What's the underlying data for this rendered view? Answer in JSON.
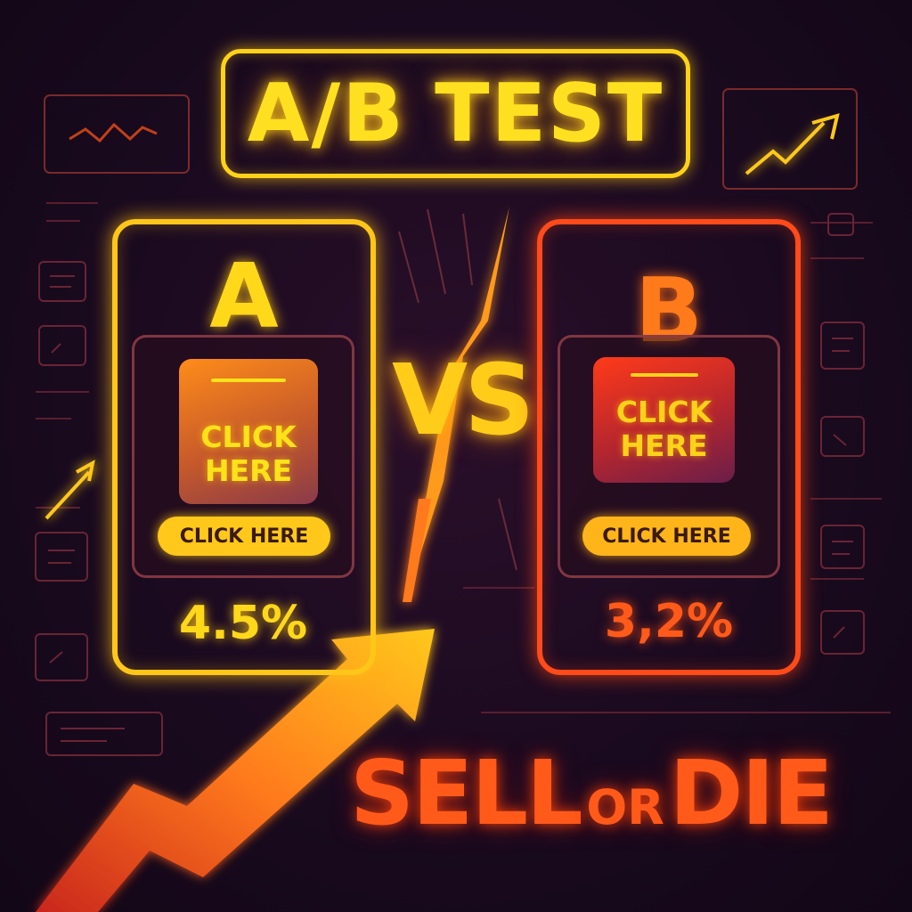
{
  "title": "A/B TEST",
  "vs_label": "VS",
  "variants": [
    {
      "letter": "A",
      "image_cta": [
        "CLICK",
        "HERE"
      ],
      "button": "CLICK HERE",
      "rate": "4.5%"
    },
    {
      "letter": "B",
      "image_cta": [
        "CLICK",
        "HERE"
      ],
      "button": "CLICK HERE",
      "rate": "3,2%"
    }
  ],
  "tagline": {
    "part1": "SELL",
    "part2": "OR",
    "part3": "DIE"
  },
  "colors": {
    "variant_a": "#ffc61a",
    "variant_b": "#ff4a1a",
    "background": "#1a0a1f",
    "arrow": "#ff9a1a"
  },
  "icons": [
    "line-chart-icon",
    "trend-up-chart-icon",
    "trend-up-arrow-icon",
    "document-icon",
    "growth-arrow-icon",
    "lightning-divider-icon"
  ]
}
